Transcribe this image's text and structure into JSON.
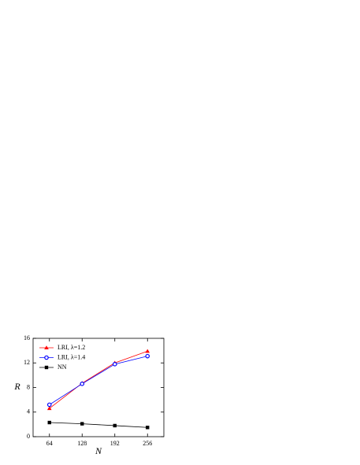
{
  "chart_data": {
    "type": "line",
    "x_label": "N",
    "y_label": "R",
    "x": [
      64,
      128,
      192,
      256
    ],
    "xlim": [
      32,
      288
    ],
    "xticks": [
      64,
      128,
      192,
      256
    ],
    "ylim": [
      0,
      16
    ],
    "yticks": [
      0,
      4,
      8,
      12,
      16
    ],
    "legend": "upper left",
    "series": [
      {
        "name": "LRI, λ=1.2",
        "color": "#ff0000",
        "marker": "triangle",
        "values": [
          4.6,
          8.7,
          12.0,
          13.9
        ]
      },
      {
        "name": "LRI, λ=1.4",
        "color": "#0000ff",
        "marker": "circle",
        "values": [
          5.2,
          8.6,
          11.8,
          13.1
        ]
      },
      {
        "name": "NN",
        "color": "#000000",
        "marker": "square",
        "values": [
          2.3,
          2.1,
          1.8,
          1.5
        ]
      }
    ]
  }
}
